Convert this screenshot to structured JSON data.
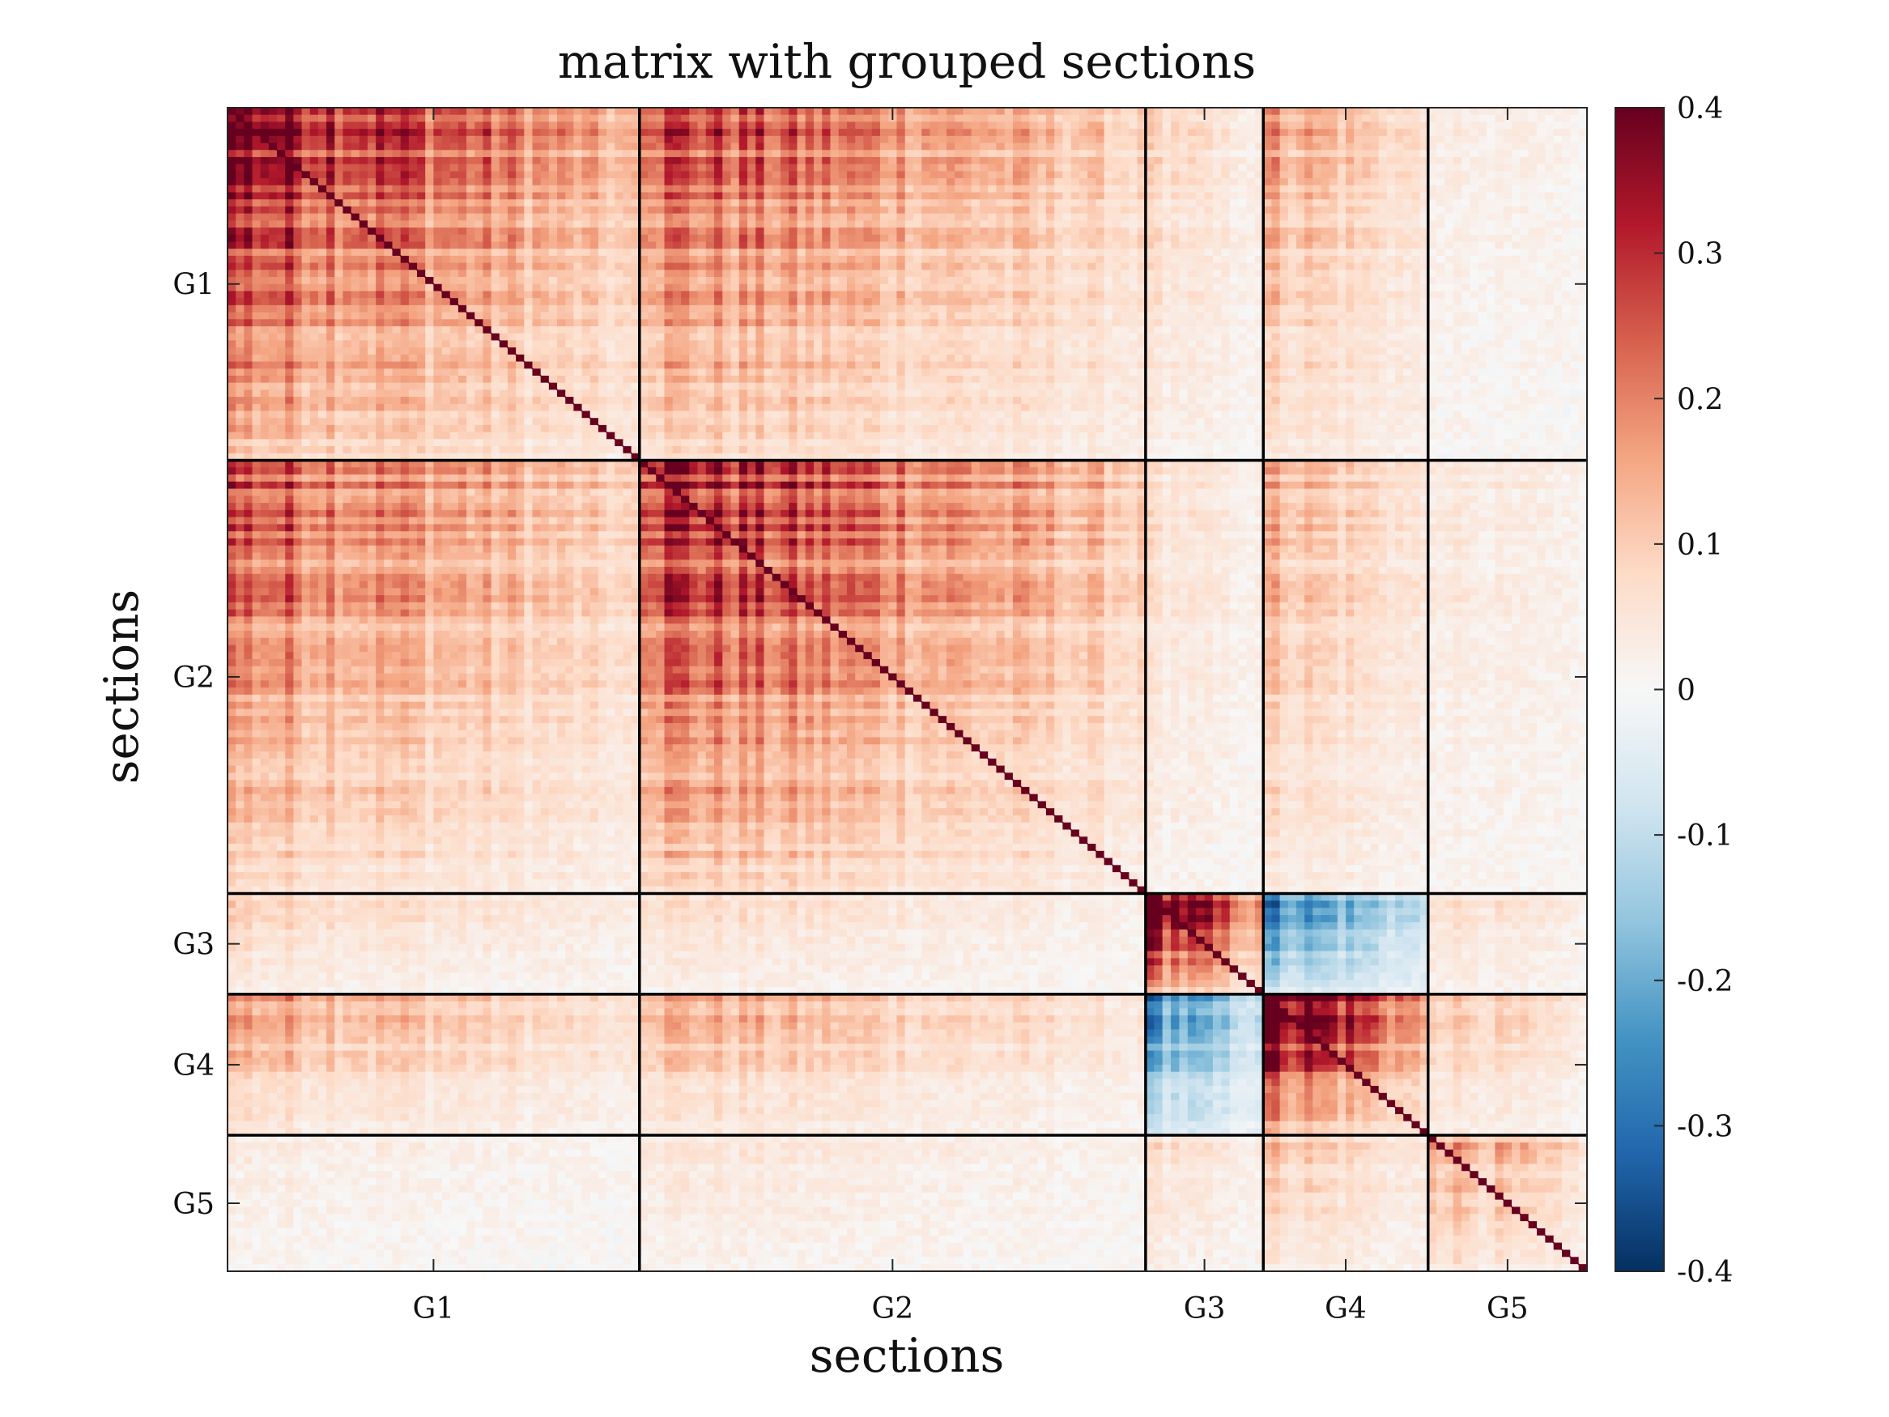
{
  "chart_data": {
    "type": "heatmap",
    "title": "matrix with grouped sections",
    "xlabel": "sections",
    "ylabel": "sections",
    "groups": [
      {
        "label": "G1",
        "size": 350
      },
      {
        "label": "G2",
        "size": 430
      },
      {
        "label": "G3",
        "size": 100
      },
      {
        "label": "G4",
        "size": 140
      },
      {
        "label": "G5",
        "size": 135
      }
    ],
    "x_tick_labels": [
      "G1",
      "G2",
      "G3",
      "G4",
      "G5"
    ],
    "y_tick_labels": [
      "G1",
      "G2",
      "G3",
      "G4",
      "G5"
    ],
    "block_mean_correlation": [
      [
        0.22,
        0.16,
        0.05,
        0.1,
        0.02
      ],
      [
        0.16,
        0.2,
        0.04,
        0.09,
        0.03
      ],
      [
        0.05,
        0.04,
        0.25,
        -0.15,
        0.04
      ],
      [
        0.1,
        0.09,
        -0.15,
        0.28,
        0.07
      ],
      [
        0.02,
        0.03,
        0.04,
        0.07,
        0.1
      ]
    ],
    "diagonal_value": 1.0,
    "clim": [
      -0.4,
      0.4
    ],
    "colormap": "red-white-blue diverging",
    "colorbar": {
      "ticks": [
        0.4,
        0.3,
        0.2,
        0.1,
        0,
        -0.1,
        -0.2,
        -0.3,
        -0.4
      ],
      "tick_labels": [
        "0.4",
        "0.3",
        "0.2",
        "0.1",
        "0",
        "-0.1",
        "-0.2",
        "-0.3",
        "-0.4"
      ],
      "colors": [
        "#053061",
        "#2166ac",
        "#4393c3",
        "#92c5de",
        "#d1e5f0",
        "#f7f7f7",
        "#fddbc7",
        "#f4a582",
        "#d6604d",
        "#b2182b",
        "#67001f"
      ]
    },
    "group_separator_lines": true
  }
}
